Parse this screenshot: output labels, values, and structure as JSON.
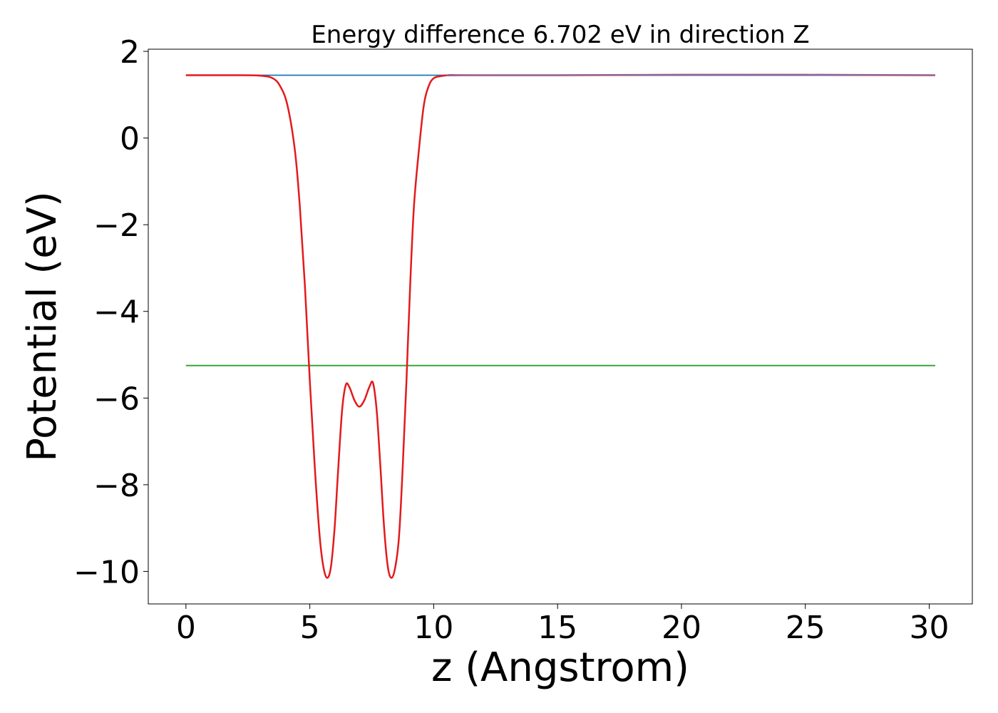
{
  "chart_data": {
    "type": "line",
    "title": "Energy difference 6.702 eV in direction Z",
    "xlabel": "z (Angstrom)",
    "ylabel": "Potential (eV)",
    "xlim": [
      -1.52,
      31.74
    ],
    "ylim": [
      -10.75,
      2.05
    ],
    "xticks": [
      0,
      5,
      10,
      15,
      20,
      25,
      30
    ],
    "yticks": [
      2,
      0,
      -2,
      -4,
      -6,
      -8,
      -10
    ],
    "grid": false,
    "legend": "none",
    "series": [
      {
        "color": "#1f77b4",
        "x": [
          0,
          30.24
        ],
        "y": [
          1.45,
          1.45
        ]
      },
      {
        "color": "#2ca02c",
        "x": [
          0,
          30.24
        ],
        "y": [
          -5.25,
          -5.25
        ]
      },
      {
        "color": "#e31a1c",
        "x": [
          0,
          2.0,
          3.0,
          3.5,
          3.8,
          4.1,
          4.4,
          4.6,
          4.8,
          5.0,
          5.2,
          5.4,
          5.55,
          5.7,
          5.85,
          6.0,
          6.15,
          6.3,
          6.45,
          6.6,
          6.8,
          7.0,
          7.2,
          7.4,
          7.55,
          7.7,
          7.85,
          8.0,
          8.15,
          8.3,
          8.45,
          8.6,
          8.75,
          8.9,
          9.05,
          9.2,
          9.4,
          9.6,
          9.8,
          10.0,
          10.3,
          10.6,
          11.0,
          11.5,
          12.0,
          15.0,
          20.0,
          25.0,
          30.24
        ],
        "y": [
          1.45,
          1.45,
          1.44,
          1.38,
          1.2,
          0.75,
          -0.3,
          -1.6,
          -3.4,
          -5.6,
          -7.6,
          -9.2,
          -9.9,
          -10.15,
          -9.9,
          -9.0,
          -7.6,
          -6.3,
          -5.7,
          -5.75,
          -6.05,
          -6.2,
          -6.05,
          -5.75,
          -5.65,
          -6.3,
          -7.6,
          -9.0,
          -9.9,
          -10.15,
          -9.9,
          -9.2,
          -7.6,
          -5.6,
          -3.4,
          -1.6,
          -0.3,
          0.75,
          1.2,
          1.38,
          1.43,
          1.45,
          1.45,
          1.45,
          1.45,
          1.45,
          1.46,
          1.46,
          1.45
        ]
      },
      {
        "color": "#7570b3",
        "x": [
          10.5,
          12.0,
          15.0,
          20.0,
          25.0,
          30.24
        ],
        "y": [
          1.44,
          1.45,
          1.45,
          1.46,
          1.46,
          1.45
        ]
      }
    ]
  }
}
